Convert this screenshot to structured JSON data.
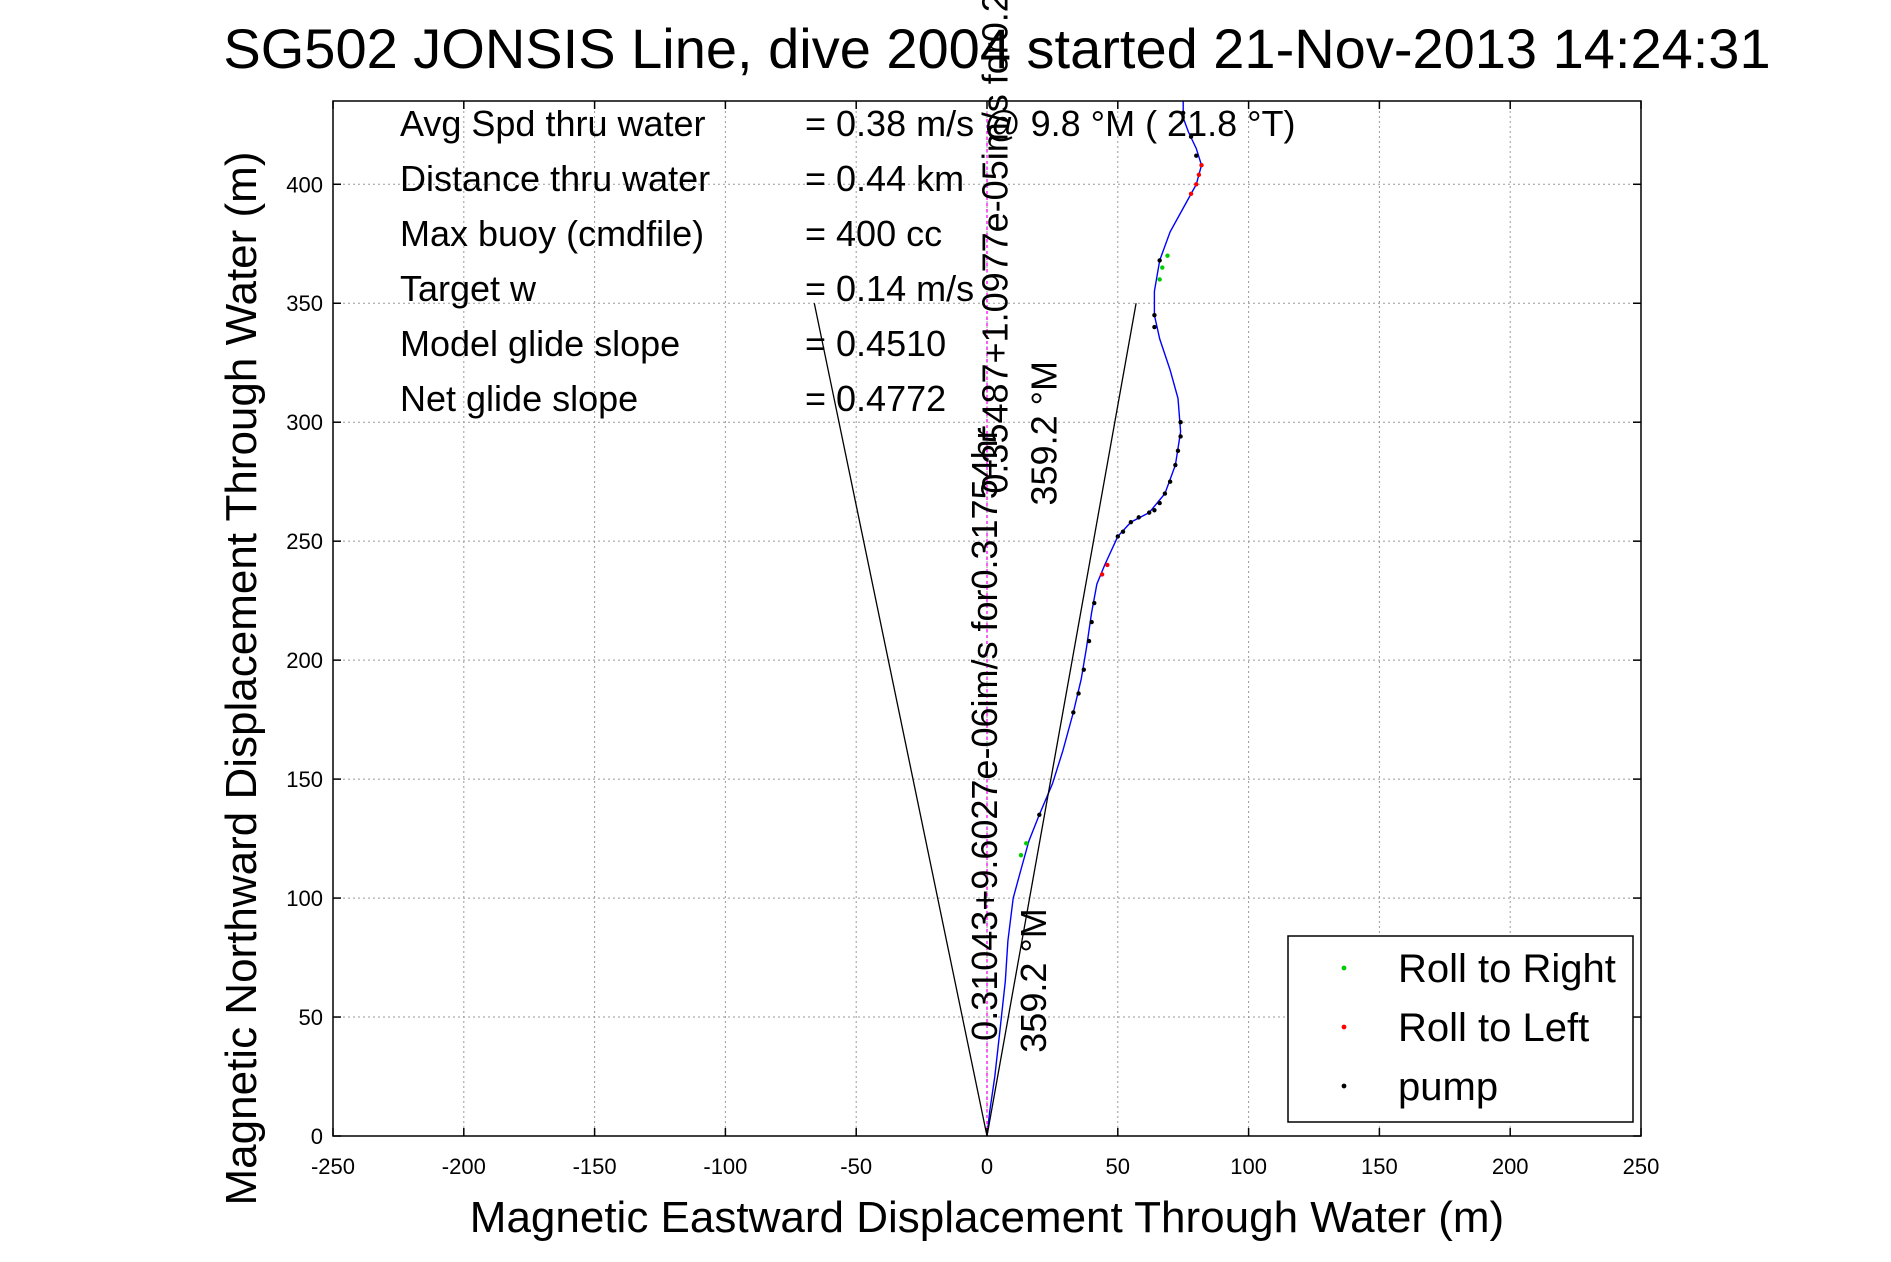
{
  "chart_data": {
    "type": "line",
    "title": "SG502 JONSIS Line, dive 2004 started 21-Nov-2013 14:24:31",
    "xlabel": "Magnetic Eastward Displacement Through Water (m)",
    "ylabel": "Magnetic Northward Displacement Through Water (m)",
    "xlim": [
      -250,
      250
    ],
    "ylim": [
      0,
      435
    ],
    "xticks": [
      -250,
      -200,
      -150,
      -100,
      -50,
      0,
      50,
      100,
      150,
      200,
      250
    ],
    "yticks": [
      0,
      50,
      100,
      150,
      200,
      250,
      300,
      350,
      400
    ],
    "grid": true,
    "stats": [
      {
        "label": "Avg Spd thru water",
        "value": "=  0.38 m/s @   9.8 °M ( 21.8 °T)"
      },
      {
        "label": "Distance thru water",
        "value": "=  0.44 km"
      },
      {
        "label": "Max buoy (cmdfile)",
        "value": "= 400 cc"
      },
      {
        "label": "Target w",
        "value": "= 0.14 m/s"
      },
      {
        "label": "Model glide slope",
        "value": "= 0.4510"
      },
      {
        "label": "Net glide slope",
        "value": "= 0.4772"
      }
    ],
    "annotations": [
      {
        "text": "0.31043+9.6027e-06im/s for0.31754hr",
        "x": 0,
        "y": 40
      },
      {
        "text": "359.2 °M",
        "x": 8,
        "y": 35
      },
      {
        "text": "0.35487+1.0977e-05im/s for0.2...",
        "x": 4,
        "y": 270
      },
      {
        "text": "359.2 °M",
        "x": 12,
        "y": 265
      }
    ],
    "series": [
      {
        "name": "track",
        "color": "#0000ff",
        "points": [
          [
            0,
            0
          ],
          [
            1,
            10
          ],
          [
            3,
            25
          ],
          [
            5,
            45
          ],
          [
            7,
            65
          ],
          [
            8,
            82
          ],
          [
            10,
            100
          ],
          [
            13,
            112
          ],
          [
            16,
            124
          ],
          [
            20,
            135
          ],
          [
            25,
            148
          ],
          [
            29,
            162
          ],
          [
            33,
            178
          ],
          [
            36,
            192
          ],
          [
            38,
            205
          ],
          [
            40,
            220
          ],
          [
            42,
            232
          ],
          [
            45,
            240
          ],
          [
            50,
            252
          ],
          [
            55,
            258
          ],
          [
            62,
            262
          ],
          [
            68,
            270
          ],
          [
            72,
            282
          ],
          [
            74,
            296
          ],
          [
            73,
            310
          ],
          [
            70,
            322
          ],
          [
            66,
            335
          ],
          [
            64,
            345
          ],
          [
            64,
            355
          ],
          [
            66,
            368
          ],
          [
            70,
            380
          ],
          [
            75,
            390
          ],
          [
            80,
            400
          ],
          [
            82,
            408
          ],
          [
            80,
            415
          ],
          [
            77,
            422
          ],
          [
            75,
            428
          ],
          [
            75,
            435
          ]
        ]
      },
      {
        "name": "wedge-left",
        "color": "#000000",
        "points": [
          [
            0,
            0
          ],
          [
            -66,
            350
          ]
        ]
      },
      {
        "name": "wedge-right",
        "color": "#000000",
        "points": [
          [
            0,
            0
          ],
          [
            57,
            350
          ]
        ]
      },
      {
        "name": "current-line",
        "color": "#ff00ff",
        "points": [
          [
            0,
            0
          ],
          [
            0,
            430
          ]
        ]
      },
      {
        "name": "Roll to Right",
        "color": "#00cc00",
        "points": [
          [
            13,
            118
          ],
          [
            15,
            123
          ],
          [
            66,
            360
          ],
          [
            67,
            365
          ],
          [
            69,
            370
          ]
        ]
      },
      {
        "name": "Roll to Left",
        "color": "#ff0000",
        "points": [
          [
            44,
            236
          ],
          [
            46,
            240
          ],
          [
            78,
            396
          ],
          [
            80,
            400
          ],
          [
            81,
            404
          ],
          [
            82,
            408
          ]
        ]
      },
      {
        "name": "pump",
        "color": "#000000",
        "points": [
          [
            20,
            135
          ],
          [
            33,
            178
          ],
          [
            35,
            186
          ],
          [
            37,
            196
          ],
          [
            39,
            208
          ],
          [
            40,
            216
          ],
          [
            41,
            224
          ],
          [
            50,
            252
          ],
          [
            52,
            254
          ],
          [
            55,
            258
          ],
          [
            58,
            260
          ],
          [
            62,
            262
          ],
          [
            64,
            263
          ],
          [
            66,
            266
          ],
          [
            68,
            270
          ],
          [
            70,
            275
          ],
          [
            72,
            282
          ],
          [
            73,
            288
          ],
          [
            74,
            294
          ],
          [
            74,
            300
          ],
          [
            64,
            340
          ],
          [
            64,
            345
          ],
          [
            66,
            368
          ],
          [
            80,
            412
          ],
          [
            78,
            420
          ],
          [
            75,
            430
          ]
        ]
      }
    ],
    "legend": {
      "placement": "bottom-right",
      "entries": [
        {
          "name": "Roll to Right",
          "color": "#00cc00"
        },
        {
          "name": "Roll to Left",
          "color": "#ff0000"
        },
        {
          "name": "pump",
          "color": "#000000"
        }
      ]
    }
  }
}
